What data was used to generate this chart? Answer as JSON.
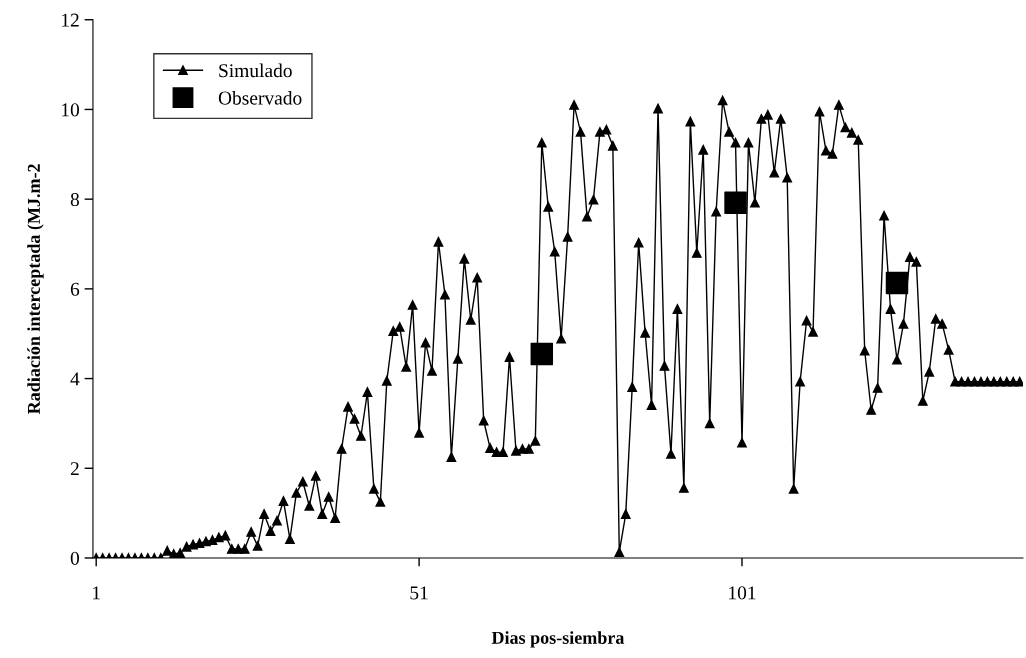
{
  "chart_data": {
    "type": "line",
    "xlabel": "Dias pos-siembra",
    "ylabel": "Radiación interceptada (MJ.m-2",
    "xlim": [
      0.5,
      144.5
    ],
    "xticks": [
      1,
      51,
      101
    ],
    "ylim": [
      0,
      12
    ],
    "yticks": [
      0,
      2,
      4,
      6,
      8,
      10,
      12
    ],
    "grid": false,
    "legend": "top left",
    "series": [
      {
        "name": "Simulado",
        "color": "#000000",
        "marker": "triangle",
        "line_style": "solid",
        "x": [
          1,
          2,
          3,
          4,
          5,
          6,
          7,
          8,
          9,
          10,
          11,
          12,
          13,
          14,
          15,
          16,
          17,
          18,
          19,
          20,
          21,
          22,
          23,
          24,
          25,
          26,
          27,
          28,
          29,
          30,
          31,
          32,
          33,
          34,
          35,
          36,
          37,
          38,
          39,
          40,
          41,
          42,
          43,
          44,
          45,
          46,
          47,
          48,
          49,
          50,
          51,
          52,
          53,
          54,
          55,
          56,
          57,
          58,
          59,
          60,
          61,
          62,
          63,
          64,
          65,
          66,
          67,
          68,
          69,
          70,
          71,
          72,
          73,
          74,
          75,
          76,
          77,
          78,
          79,
          80,
          81,
          82,
          83,
          84,
          85,
          86,
          87,
          88,
          89,
          90,
          91,
          92,
          93,
          94,
          95,
          96,
          97,
          98,
          99,
          100,
          101,
          102,
          103,
          104,
          105,
          106,
          107,
          108,
          109,
          110,
          111,
          112,
          113,
          114,
          115,
          116,
          117,
          118,
          119,
          120,
          121,
          122,
          123,
          124,
          125,
          126,
          127,
          128,
          129,
          130,
          131,
          132,
          133,
          134,
          135,
          136,
          137,
          138,
          139,
          140,
          141,
          142,
          143,
          144
        ],
        "values": [
          0,
          0,
          0,
          0,
          0,
          0,
          0,
          0,
          0,
          0,
          0,
          0.16,
          0.09,
          0.11,
          0.25,
          0.3,
          0.33,
          0.37,
          0.4,
          0.46,
          0.5,
          0.2,
          0.2,
          0.2,
          0.58,
          0.27,
          0.98,
          0.6,
          0.83,
          1.27,
          0.42,
          1.45,
          1.7,
          1.16,
          1.83,
          0.98,
          1.36,
          0.89,
          2.43,
          3.37,
          3.1,
          2.72,
          3.7,
          1.54,
          1.25,
          3.95,
          5.06,
          5.15,
          4.26,
          5.64,
          2.79,
          4.8,
          4.17,
          7.05,
          5.87,
          2.25,
          4.44,
          6.67,
          5.31,
          6.25,
          3.06,
          2.45,
          2.36,
          2.36,
          4.48,
          2.39,
          2.43,
          2.43,
          2.61,
          9.26,
          7.83,
          6.83,
          4.89,
          7.16,
          10.1,
          9.5,
          7.61,
          7.99,
          9.5,
          9.55,
          9.19,
          0.13,
          0.98,
          3.81,
          7.03,
          5.02,
          3.41,
          10.02,
          4.28,
          2.32,
          5.55,
          1.56,
          9.73,
          6.8,
          9.1,
          3.0,
          7.72,
          10.2,
          9.5,
          9.26,
          2.57,
          9.26,
          7.92,
          9.79,
          9.88,
          8.59,
          9.79,
          8.48,
          1.54,
          3.93,
          5.29,
          5.04,
          9.95,
          9.08,
          9.01,
          10.1,
          9.6,
          9.48,
          9.32,
          4.62,
          3.3,
          3.79,
          7.63,
          5.55,
          4.42,
          5.22,
          6.71,
          6.6,
          3.5,
          4.15,
          5.33,
          5.22,
          4.64,
          3.93,
          3.93,
          3.93,
          3.93,
          3.93,
          3.93,
          3.93,
          3.93,
          3.93,
          3.93,
          3.93
        ]
      },
      {
        "name": "Observado",
        "type": "scatter",
        "color": "#000000",
        "marker": "square",
        "x": [
          70,
          100,
          125
        ],
        "values": [
          4.55,
          7.92,
          6.13
        ]
      }
    ]
  }
}
